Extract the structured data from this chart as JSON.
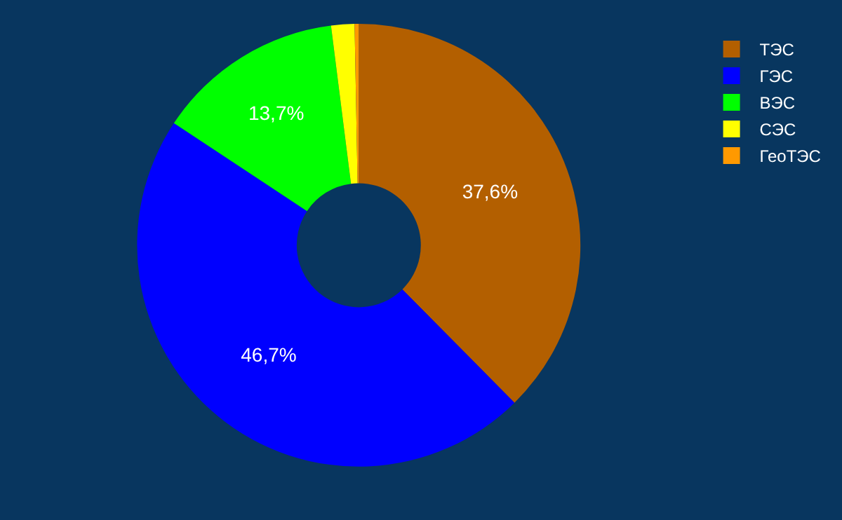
{
  "chart_data": {
    "type": "donut",
    "categories": [
      "ТЭС",
      "ГЭС",
      "ВЭС",
      "СЭС",
      "ГеоТЭС"
    ],
    "values": [
      37.6,
      46.7,
      13.7,
      1.7,
      0.3
    ],
    "colors": [
      "#b35f00",
      "#0000ff",
      "#00ff00",
      "#ffff00",
      "#ff9900"
    ],
    "value_labels": [
      "37,6%",
      "46,7%",
      "13,7%",
      null,
      null
    ],
    "legend": "top right"
  }
}
